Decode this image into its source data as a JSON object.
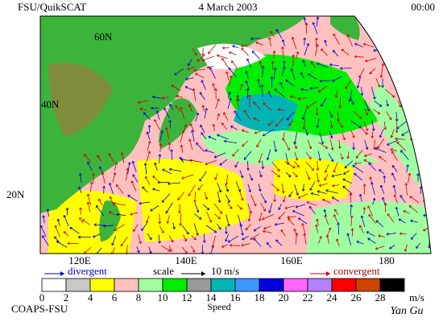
{
  "header": {
    "left": "FSU/QuikSCAT",
    "date": "4 March 2003",
    "time": "00:00"
  },
  "lat_labels": [
    "60N",
    "40N",
    "20N"
  ],
  "lon_labels": [
    "120E",
    "140E",
    "160E",
    "180"
  ],
  "legend": {
    "divergent": "divergent",
    "scale": "scale",
    "scale_value": "10 m/s",
    "convergent": "convergent"
  },
  "colorbar": {
    "labels": [
      0,
      2,
      4,
      6,
      8,
      10,
      12,
      14,
      16,
      18,
      20,
      22,
      24,
      26,
      28
    ],
    "colors": [
      "#ffffff",
      "#c8c8c8",
      "#ffff00",
      "#ffc0c0",
      "#a0ffa0",
      "#00ee00",
      "#999999",
      "#00b4b4",
      "#3c96ff",
      "#0000dd",
      "#ff66ff",
      "#b482ff",
      "#ff0000",
      "#cc4400",
      "#000000"
    ],
    "unit": "m/s",
    "title": "Speed"
  },
  "footer": {
    "left": "COAPS-FSU",
    "signature": "Yan Gu"
  }
}
